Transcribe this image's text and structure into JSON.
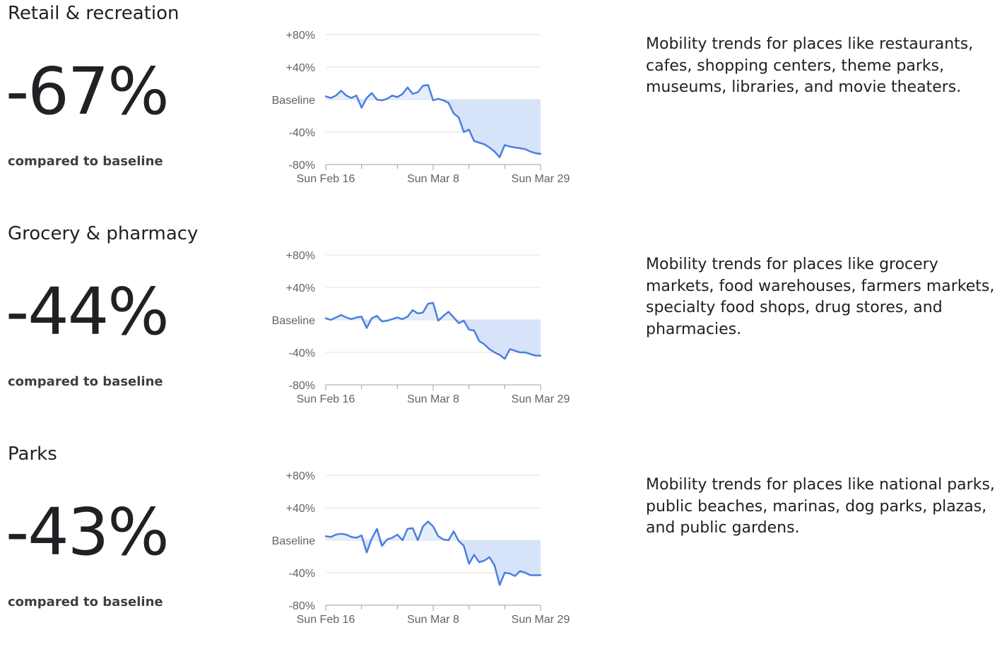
{
  "sections": [
    {
      "title": "Retail & recreation",
      "value": "-67%",
      "compared": "compared to baseline",
      "description": "Mobility trends for places like restaurants, cafes, shopping centers, theme parks, museums, libraries, and movie theaters."
    },
    {
      "title": "Grocery & pharmacy",
      "value": "-44%",
      "compared": "compared to baseline",
      "description": "Mobility trends for places like grocery markets, food warehouses, farmers markets, specialty food shops, drug stores, and pharmacies."
    },
    {
      "title": "Parks",
      "value": "-43%",
      "compared": "compared to baseline",
      "description": "Mobility trends for places like national parks, public beaches, marinas, dog parks, plazas, and public gardens."
    }
  ],
  "colors": {
    "line": "#4a7fe0",
    "fill": "#d7e3f9",
    "grid": "#e0e0e0",
    "axis": "#9aa0a6",
    "text": "#202124"
  },
  "chart_data": [
    {
      "type": "area",
      "title": "Retail & recreation",
      "y_tick_labels": [
        "+80%",
        "+40%",
        "Baseline",
        "-40%",
        "-80%"
      ],
      "y_ticks": [
        80,
        40,
        0,
        -40,
        -80
      ],
      "ylim": [
        -80,
        80
      ],
      "x_tick_labels": [
        "Sun Feb 16",
        "Sun Mar 8",
        "Sun Mar 29"
      ],
      "x_tick_days": [
        0,
        21,
        42
      ],
      "minor_tick_days": [
        7,
        14,
        28,
        35
      ],
      "x": [
        0,
        1,
        2,
        3,
        4,
        5,
        6,
        7,
        8,
        9,
        10,
        11,
        12,
        13,
        14,
        15,
        16,
        17,
        18,
        19,
        20,
        21,
        22,
        23,
        24,
        25,
        26,
        27,
        28,
        29,
        30,
        31,
        32,
        33,
        34,
        35,
        36,
        37,
        38,
        39,
        40,
        41,
        42
      ],
      "values": [
        4,
        2,
        5,
        11,
        5,
        2,
        5,
        -10,
        2,
        8,
        0,
        -1,
        1,
        5,
        3,
        7,
        15,
        7,
        9,
        17,
        18,
        -1,
        1,
        -1,
        -4,
        -17,
        -22,
        -40,
        -37,
        -51,
        -53,
        -55,
        -59,
        -64,
        -71,
        -56,
        -58,
        -59,
        -60,
        -61,
        -64,
        -66,
        -67
      ]
    },
    {
      "type": "area",
      "title": "Grocery & pharmacy",
      "y_tick_labels": [
        "+80%",
        "+40%",
        "Baseline",
        "-40%",
        "-80%"
      ],
      "y_ticks": [
        80,
        40,
        0,
        -40,
        -80
      ],
      "ylim": [
        -80,
        80
      ],
      "x_tick_labels": [
        "Sun Feb 16",
        "Sun Mar 8",
        "Sun Mar 29"
      ],
      "x_tick_days": [
        0,
        21,
        42
      ],
      "minor_tick_days": [
        7,
        14,
        28,
        35
      ],
      "x": [
        0,
        1,
        2,
        3,
        4,
        5,
        6,
        7,
        8,
        9,
        10,
        11,
        12,
        13,
        14,
        15,
        16,
        17,
        18,
        19,
        20,
        21,
        22,
        23,
        24,
        25,
        26,
        27,
        28,
        29,
        30,
        31,
        32,
        33,
        34,
        35,
        36,
        37,
        38,
        39,
        40,
        41,
        42
      ],
      "values": [
        2,
        0,
        3,
        6,
        3,
        1,
        3,
        4,
        -10,
        2,
        5,
        -2,
        -1,
        1,
        3,
        1,
        4,
        12,
        8,
        9,
        20,
        21,
        -1,
        5,
        10,
        3,
        -4,
        -1,
        -12,
        -13,
        -26,
        -30,
        -36,
        -40,
        -43,
        -48,
        -36,
        -38,
        -40,
        -40,
        -42,
        -44,
        -44
      ]
    },
    {
      "type": "area",
      "title": "Parks",
      "y_tick_labels": [
        "+80%",
        "+40%",
        "Baseline",
        "-40%",
        "-80%"
      ],
      "y_ticks": [
        80,
        40,
        0,
        -40,
        -80
      ],
      "ylim": [
        -80,
        80
      ],
      "x_tick_labels": [
        "Sun Feb 16",
        "Sun Mar 8",
        "Sun Mar 29"
      ],
      "x_tick_days": [
        0,
        21,
        42
      ],
      "minor_tick_days": [
        7,
        14,
        28,
        35
      ],
      "x": [
        0,
        1,
        2,
        3,
        4,
        5,
        6,
        7,
        8,
        9,
        10,
        11,
        12,
        13,
        14,
        15,
        16,
        17,
        18,
        19,
        20,
        21,
        22,
        23,
        24,
        25,
        26,
        27,
        28,
        29,
        30,
        31,
        32,
        33,
        34,
        35,
        36,
        37,
        38,
        39,
        40,
        41,
        42
      ],
      "values": [
        5,
        4,
        7,
        8,
        7,
        4,
        3,
        6,
        -15,
        2,
        14,
        -7,
        1,
        3,
        7,
        0,
        14,
        15,
        0,
        17,
        23,
        17,
        5,
        1,
        0,
        11,
        -1,
        -7,
        -29,
        -18,
        -27,
        -25,
        -21,
        -31,
        -55,
        -40,
        -41,
        -44,
        -38,
        -40,
        -43,
        -43,
        -43
      ]
    }
  ]
}
